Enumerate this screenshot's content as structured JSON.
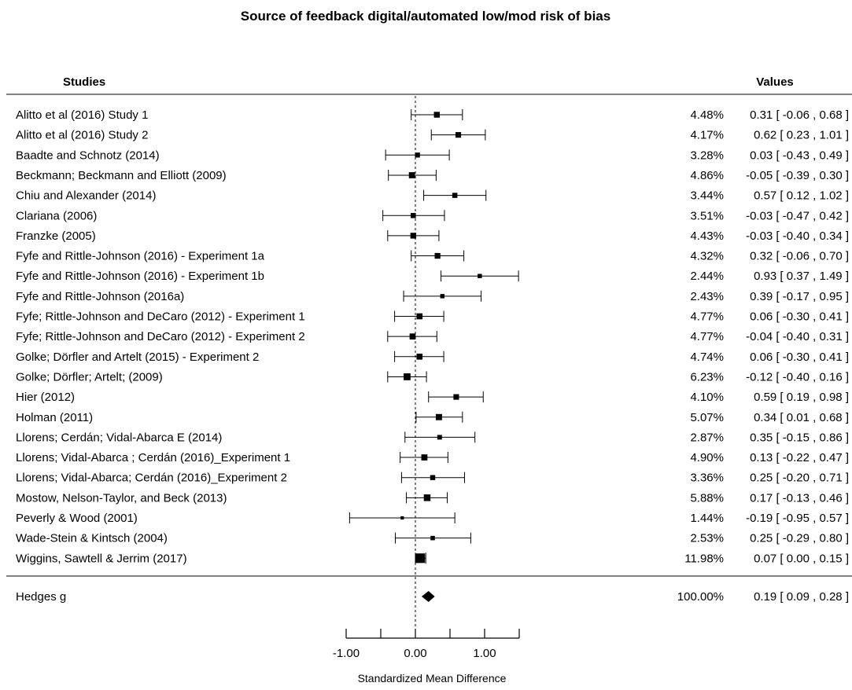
{
  "chart_data": {
    "type": "forest",
    "title": "Source of feedback digital/automated low/mod risk of bias",
    "headers": {
      "studies": "Studies",
      "values": "Values"
    },
    "xlabel": "Standardized Mean Difference",
    "xlim": [
      -1.0,
      1.5
    ],
    "xticks": [
      -1.0,
      -0.5,
      0.0,
      0.5,
      1.0,
      1.5
    ],
    "xtick_labels": [
      {
        "value": -1.0,
        "label": "-1.00"
      },
      {
        "value": 0.0,
        "label": "0.00"
      },
      {
        "value": 1.0,
        "label": "1.00"
      }
    ],
    "reference_line": 0.0,
    "studies": [
      {
        "name": "Alitto et al (2016) Study 1",
        "weight": "4.48%",
        "est": 0.31,
        "lo": -0.06,
        "hi": 0.68,
        "ci_text": "0.31 [ -0.06 , 0.68 ]"
      },
      {
        "name": "Alitto et al (2016) Study 2",
        "weight": "4.17%",
        "est": 0.62,
        "lo": 0.23,
        "hi": 1.01,
        "ci_text": "0.62 [  0.23 , 1.01 ]"
      },
      {
        "name": "Baadte and Schnotz (2014)",
        "weight": "3.28%",
        "est": 0.03,
        "lo": -0.43,
        "hi": 0.49,
        "ci_text": "0.03 [ -0.43 , 0.49 ]"
      },
      {
        "name": "Beckmann; Beckmann and Elliott (2009)",
        "weight": "4.86%",
        "est": -0.05,
        "lo": -0.39,
        "hi": 0.3,
        "ci_text": "-0.05 [ -0.39 , 0.30 ]"
      },
      {
        "name": "Chiu and Alexander (2014)",
        "weight": "3.44%",
        "est": 0.57,
        "lo": 0.12,
        "hi": 1.02,
        "ci_text": "0.57 [  0.12 , 1.02 ]"
      },
      {
        "name": "Clariana (2006)",
        "weight": "3.51%",
        "est": -0.03,
        "lo": -0.47,
        "hi": 0.42,
        "ci_text": "-0.03 [ -0.47 , 0.42 ]"
      },
      {
        "name": "Franzke (2005)",
        "weight": "4.43%",
        "est": -0.03,
        "lo": -0.4,
        "hi": 0.34,
        "ci_text": "-0.03 [ -0.40 , 0.34 ]"
      },
      {
        "name": "Fyfe and Rittle-Johnson (2016) - Experiment 1a",
        "weight": "4.32%",
        "est": 0.32,
        "lo": -0.06,
        "hi": 0.7,
        "ci_text": "0.32 [ -0.06 , 0.70 ]"
      },
      {
        "name": "Fyfe and Rittle-Johnson (2016) - Experiment 1b",
        "weight": "2.44%",
        "est": 0.93,
        "lo": 0.37,
        "hi": 1.49,
        "ci_text": "0.93 [  0.37 , 1.49 ]"
      },
      {
        "name": "Fyfe and Rittle-Johnson (2016a)",
        "weight": "2.43%",
        "est": 0.39,
        "lo": -0.17,
        "hi": 0.95,
        "ci_text": "0.39 [ -0.17 , 0.95 ]"
      },
      {
        "name": "Fyfe; Rittle-Johnson and DeCaro (2012) - Experiment 1",
        "weight": "4.77%",
        "est": 0.06,
        "lo": -0.3,
        "hi": 0.41,
        "ci_text": "0.06 [ -0.30 , 0.41 ]"
      },
      {
        "name": "Fyfe; Rittle-Johnson and DeCaro (2012) - Experiment 2",
        "weight": "4.77%",
        "est": -0.04,
        "lo": -0.4,
        "hi": 0.31,
        "ci_text": "-0.04 [ -0.40 , 0.31 ]"
      },
      {
        "name": "Golke; Dörfler and Artelt (2015) - Experiment 2",
        "weight": "4.74%",
        "est": 0.06,
        "lo": -0.3,
        "hi": 0.41,
        "ci_text": "0.06 [ -0.30 , 0.41 ]"
      },
      {
        "name": "Golke; Dörfler; Artelt; (2009)",
        "weight": "6.23%",
        "est": -0.12,
        "lo": -0.4,
        "hi": 0.16,
        "ci_text": "-0.12 [ -0.40 , 0.16 ]"
      },
      {
        "name": "Hier (2012)",
        "weight": "4.10%",
        "est": 0.59,
        "lo": 0.19,
        "hi": 0.98,
        "ci_text": "0.59 [  0.19 , 0.98 ]"
      },
      {
        "name": "Holman (2011)",
        "weight": "5.07%",
        "est": 0.34,
        "lo": 0.01,
        "hi": 0.68,
        "ci_text": "0.34 [  0.01 , 0.68 ]"
      },
      {
        "name": "Llorens; Cerdán; Vidal-Abarca E (2014)",
        "weight": "2.87%",
        "est": 0.35,
        "lo": -0.15,
        "hi": 0.86,
        "ci_text": "0.35 [ -0.15 , 0.86 ]"
      },
      {
        "name": "Llorens; Vidal-Abarca ; Cerdán  (2016)_Experiment 1",
        "weight": "4.90%",
        "est": 0.13,
        "lo": -0.22,
        "hi": 0.47,
        "ci_text": "0.13 [ -0.22 , 0.47 ]"
      },
      {
        "name": "Llorens; Vidal-Abarca; Cerdán (2016)_Experiment 2",
        "weight": "3.36%",
        "est": 0.25,
        "lo": -0.2,
        "hi": 0.71,
        "ci_text": "0.25 [ -0.20 , 0.71 ]"
      },
      {
        "name": "Mostow, Nelson-Taylor, and Beck (2013)",
        "weight": "5.88%",
        "est": 0.17,
        "lo": -0.13,
        "hi": 0.46,
        "ci_text": "0.17 [ -0.13 , 0.46 ]"
      },
      {
        "name": "Peverly  & Wood (2001)",
        "weight": "1.44%",
        "est": -0.19,
        "lo": -0.95,
        "hi": 0.57,
        "ci_text": "-0.19 [ -0.95 , 0.57 ]"
      },
      {
        "name": "Wade-Stein & Kintsch (2004)",
        "weight": "2.53%",
        "est": 0.25,
        "lo": -0.29,
        "hi": 0.8,
        "ci_text": "0.25 [ -0.29 , 0.80 ]"
      },
      {
        "name": "Wiggins, Sawtell & Jerrim (2017)",
        "weight": "11.98%",
        "est": 0.07,
        "lo": 0.0,
        "hi": 0.15,
        "ci_text": "0.07 [  0.00 , 0.15 ]"
      }
    ],
    "summary": {
      "name": "Hedges g",
      "weight": "100.00%",
      "est": 0.19,
      "lo": 0.09,
      "hi": 0.28,
      "ci_text": "0.19 [ 0.09 , 0.28 ]"
    }
  }
}
